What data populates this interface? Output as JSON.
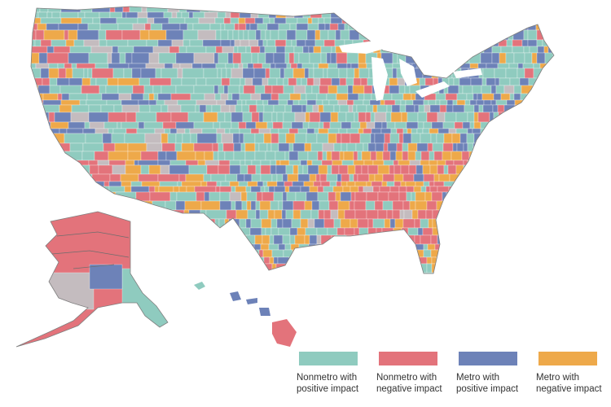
{
  "map": {
    "regions": [
      "conus",
      "alaska",
      "hawaii"
    ],
    "colors": {
      "nonmetro_positive": "#8fcbbf",
      "nonmetro_negative": "#e3737b",
      "metro_positive": "#6d82b8",
      "metro_negative": "#eea94a",
      "no_data": "#c4bcbf"
    }
  },
  "legend": {
    "items": [
      {
        "key": "nonmetro_positive",
        "label": "Nonmetro with\npositive impact",
        "color": "#8fcbbf"
      },
      {
        "key": "nonmetro_negative",
        "label": "Nonmetro with\nnegative impact",
        "color": "#e3737b"
      },
      {
        "key": "metro_positive",
        "label": "Metro with\npositive impact",
        "color": "#6d82b8"
      },
      {
        "key": "metro_negative",
        "label": "Metro with\nnegative impact",
        "color": "#eea94a"
      }
    ]
  }
}
